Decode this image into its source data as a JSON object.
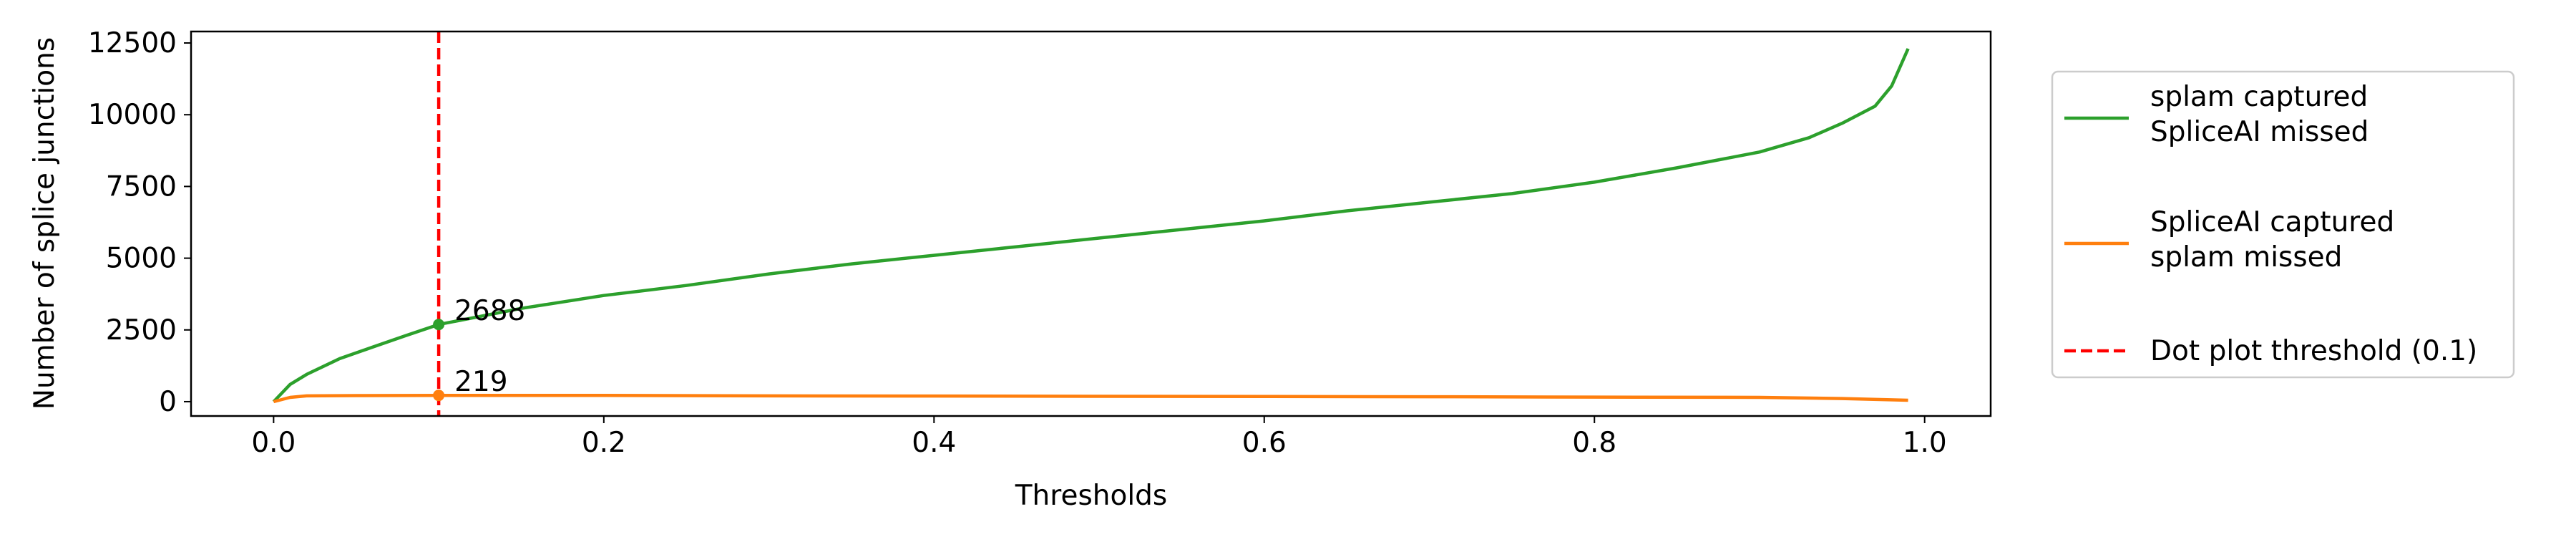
{
  "chart_data": {
    "type": "line",
    "title": "",
    "xlabel": "Thresholds",
    "ylabel": "Number of splice junctions",
    "xlim": [
      -0.05,
      1.04
    ],
    "ylim": [
      -500,
      12900
    ],
    "xticks": [
      0.0,
      0.2,
      0.4,
      0.6,
      0.8,
      1.0
    ],
    "xtick_labels": [
      "0.0",
      "0.2",
      "0.4",
      "0.6",
      "0.8",
      "1.0"
    ],
    "yticks": [
      0,
      2500,
      5000,
      7500,
      10000,
      12500
    ],
    "ytick_labels": [
      "0",
      "2500",
      "5000",
      "7500",
      "10000",
      "12500"
    ],
    "grid": false,
    "legend_position": "outside-right",
    "series": [
      {
        "name": "splam captured\nSpliceAI missed",
        "color": "#2ca02c",
        "x": [
          0.0,
          0.01,
          0.02,
          0.04,
          0.06,
          0.08,
          0.1,
          0.15,
          0.2,
          0.25,
          0.3,
          0.35,
          0.4,
          0.45,
          0.5,
          0.55,
          0.6,
          0.65,
          0.7,
          0.75,
          0.8,
          0.85,
          0.9,
          0.93,
          0.95,
          0.97,
          0.98,
          0.99
        ],
        "y": [
          0,
          600,
          950,
          1500,
          1900,
          2300,
          2688,
          3250,
          3700,
          4050,
          4450,
          4800,
          5100,
          5400,
          5700,
          6000,
          6300,
          6650,
          6950,
          7250,
          7650,
          8150,
          8700,
          9200,
          9700,
          10300,
          11000,
          12300
        ]
      },
      {
        "name": "SpliceAI captured\nsplam missed",
        "color": "#ff7f0e",
        "x": [
          0.0,
          0.01,
          0.02,
          0.05,
          0.1,
          0.2,
          0.3,
          0.4,
          0.5,
          0.6,
          0.7,
          0.8,
          0.9,
          0.95,
          0.99
        ],
        "y": [
          0,
          150,
          200,
          210,
          219,
          215,
          200,
          195,
          185,
          180,
          170,
          160,
          150,
          110,
          50
        ]
      }
    ],
    "threshold_line": {
      "x": 0.1,
      "label": "Dot plot threshold (0.1)",
      "color": "#ff0000",
      "style": "dashed"
    },
    "annotations": [
      {
        "x": 0.1,
        "y": 2688,
        "text": "2688",
        "color": "#2ca02c"
      },
      {
        "x": 0.1,
        "y": 219,
        "text": "219",
        "color": "#ff7f0e"
      }
    ]
  }
}
